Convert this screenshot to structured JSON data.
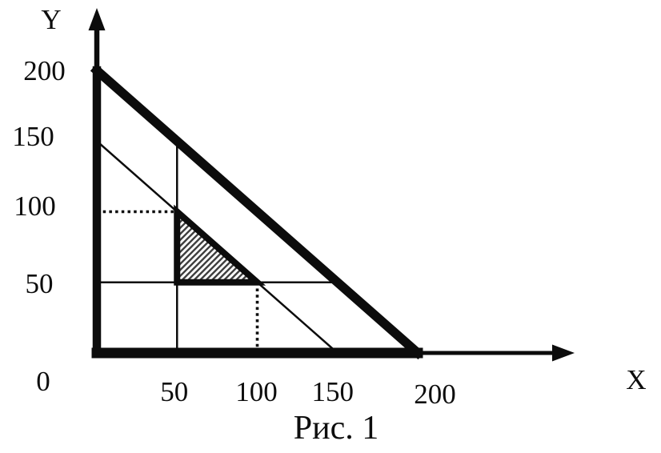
{
  "figure": {
    "caption": "Рис. 1",
    "x_axis_label": "X",
    "y_axis_label": "Y",
    "origin_label": "0",
    "background_color": "#ffffff",
    "ink_color": "#0c0c0c",
    "hatch_color": "#3f3f3f"
  },
  "chart_data": {
    "type": "line",
    "title": "Рис. 1",
    "xlabel": "X",
    "ylabel": "Y",
    "xlim": [
      0,
      200
    ],
    "ylim": [
      0,
      200
    ],
    "grid": false,
    "legend": false,
    "x_tick_values": [
      50,
      100,
      150,
      200
    ],
    "x_tick_labels": [
      "50",
      "100",
      "150",
      "200"
    ],
    "y_tick_values": [
      50,
      100,
      150,
      200
    ],
    "y_tick_labels": [
      "50",
      "100",
      "150",
      "200"
    ],
    "axes": {
      "x": {
        "label": "X",
        "arrow": true
      },
      "y": {
        "label": "Y",
        "arrow": true
      }
    },
    "lines": [
      {
        "name": "inner-diagonal-line",
        "points": [
          [
            0,
            150
          ],
          [
            150,
            0
          ]
        ],
        "style": "thin",
        "equation": "x + y = 150"
      },
      {
        "name": "vertical-line-x50",
        "points": [
          [
            50,
            0
          ],
          [
            50,
            150
          ]
        ],
        "style": "thin"
      },
      {
        "name": "horizontal-line-y50",
        "points": [
          [
            0,
            50
          ],
          [
            150,
            50
          ]
        ],
        "style": "thin"
      },
      {
        "name": "dotted-guide-y100",
        "points": [
          [
            0,
            100
          ],
          [
            50,
            100
          ]
        ],
        "style": "dotted"
      },
      {
        "name": "dotted-guide-x100",
        "points": [
          [
            100,
            0
          ],
          [
            100,
            50
          ]
        ],
        "style": "dotted"
      },
      {
        "name": "y-axis-segment",
        "points": [
          [
            0,
            0
          ],
          [
            0,
            200
          ]
        ],
        "style": "thick"
      },
      {
        "name": "x-axis-segment",
        "points": [
          [
            0,
            0
          ],
          [
            200,
            0
          ]
        ],
        "style": "thick"
      },
      {
        "name": "outer-diagonal-line",
        "points": [
          [
            0,
            200
          ],
          [
            200,
            0
          ]
        ],
        "style": "thick",
        "equation": "x + y = 200"
      }
    ],
    "shaded_region": {
      "name": "hatched-triangle-region",
      "vertices": [
        [
          50,
          100
        ],
        [
          50,
          50
        ],
        [
          100,
          50
        ]
      ],
      "outline": "thick",
      "fill": "diagonal-hatch"
    }
  }
}
